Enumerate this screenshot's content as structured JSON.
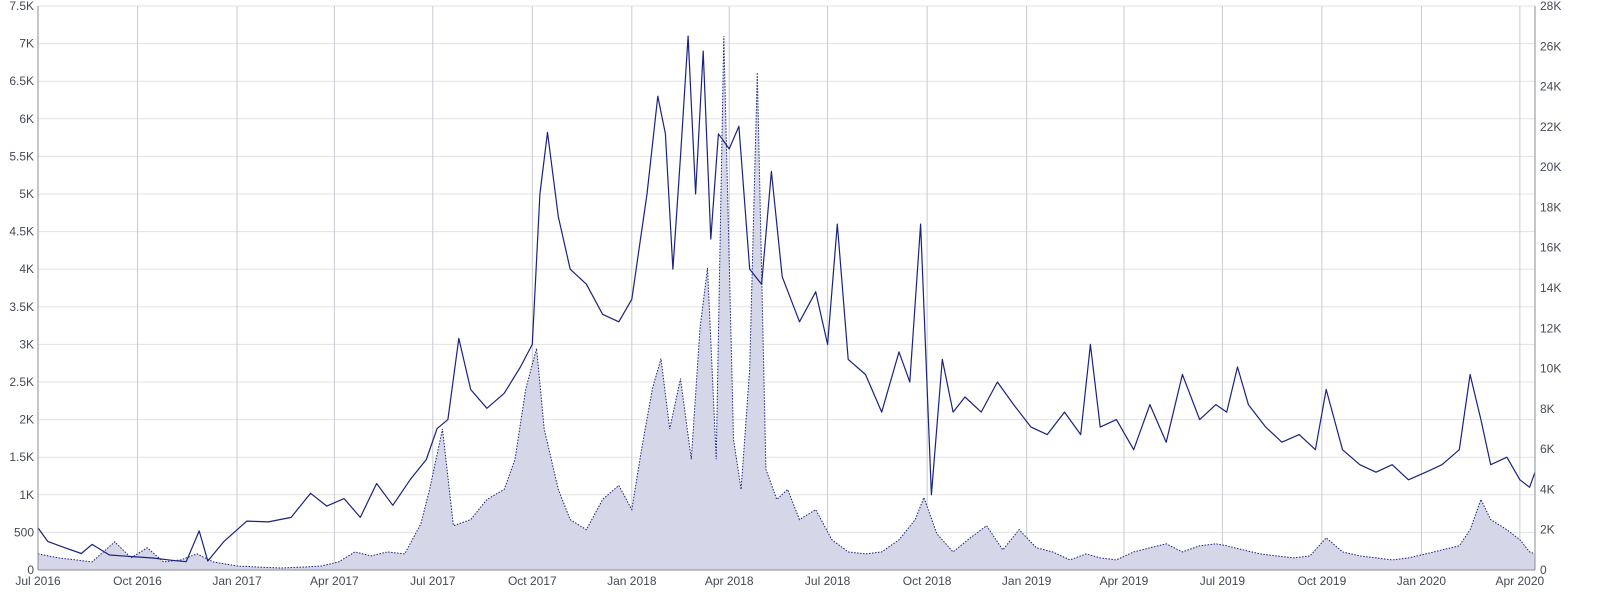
{
  "chart_data": {
    "type": "line",
    "title": "",
    "xlabel": "",
    "ylabel": "",
    "grid": true,
    "x_range": [
      "2016-07-01",
      "2020-04-15"
    ],
    "x_ticks": [
      {
        "date": "2016-07-01",
        "label": "Jul 2016"
      },
      {
        "date": "2016-10-01",
        "label": "Oct 2016"
      },
      {
        "date": "2017-01-01",
        "label": "Jan 2017"
      },
      {
        "date": "2017-04-01",
        "label": "Apr 2017"
      },
      {
        "date": "2017-07-01",
        "label": "Jul 2017"
      },
      {
        "date": "2017-10-01",
        "label": "Oct 2017"
      },
      {
        "date": "2018-01-01",
        "label": "Jan 2018"
      },
      {
        "date": "2018-04-01",
        "label": "Apr 2018"
      },
      {
        "date": "2018-07-01",
        "label": "Jul 2018"
      },
      {
        "date": "2018-10-01",
        "label": "Oct 2018"
      },
      {
        "date": "2019-01-01",
        "label": "Jan 2019"
      },
      {
        "date": "2019-04-01",
        "label": "Apr 2019"
      },
      {
        "date": "2019-07-01",
        "label": "Jul 2019"
      },
      {
        "date": "2019-10-01",
        "label": "Oct 2019"
      },
      {
        "date": "2020-01-01",
        "label": "Jan 2020"
      },
      {
        "date": "2020-04-01",
        "label": "Apr 2020"
      }
    ],
    "y_left": {
      "min": 0,
      "max": 7500,
      "ticks": [
        0,
        500,
        1000,
        1500,
        2000,
        2500,
        3000,
        3500,
        4000,
        4500,
        5000,
        5500,
        6000,
        6500,
        7000,
        7500
      ],
      "tick_labels": [
        "0",
        "500",
        "1K",
        "1.5K",
        "2K",
        "2.5K",
        "3K",
        "3.5K",
        "4K",
        "4.5K",
        "5K",
        "5.5K",
        "6K",
        "6.5K",
        "7K",
        "7.5K"
      ]
    },
    "y_right": {
      "min": 0,
      "max": 28000,
      "ticks": [
        0,
        2000,
        4000,
        6000,
        8000,
        10000,
        12000,
        14000,
        16000,
        18000,
        20000,
        22000,
        24000,
        26000,
        28000
      ],
      "tick_labels": [
        "0",
        "2K",
        "4K",
        "6K",
        "8K",
        "10K",
        "12K",
        "14K",
        "16K",
        "18K",
        "20K",
        "22K",
        "24K",
        "26K",
        "28K"
      ]
    },
    "series": [
      {
        "axis": "left",
        "style": "line",
        "color": "#1a237e",
        "points": [
          [
            "2016-07-01",
            560
          ],
          [
            "2016-07-10",
            380
          ],
          [
            "2016-07-25",
            300
          ],
          [
            "2016-08-10",
            220
          ],
          [
            "2016-08-20",
            340
          ],
          [
            "2016-09-05",
            200
          ],
          [
            "2016-09-25",
            180
          ],
          [
            "2016-10-15",
            160
          ],
          [
            "2016-11-01",
            130
          ],
          [
            "2016-11-15",
            110
          ],
          [
            "2016-11-27",
            520
          ],
          [
            "2016-12-05",
            120
          ],
          [
            "2016-12-20",
            380
          ],
          [
            "2017-01-10",
            650
          ],
          [
            "2017-01-30",
            640
          ],
          [
            "2017-02-20",
            700
          ],
          [
            "2017-03-10",
            1020
          ],
          [
            "2017-03-25",
            850
          ],
          [
            "2017-04-10",
            950
          ],
          [
            "2017-04-25",
            700
          ],
          [
            "2017-05-10",
            1150
          ],
          [
            "2017-05-25",
            860
          ],
          [
            "2017-06-10",
            1200
          ],
          [
            "2017-06-25",
            1470
          ],
          [
            "2017-07-05",
            1880
          ],
          [
            "2017-07-15",
            2000
          ],
          [
            "2017-07-25",
            3080
          ],
          [
            "2017-08-05",
            2400
          ],
          [
            "2017-08-20",
            2150
          ],
          [
            "2017-09-05",
            2350
          ],
          [
            "2017-09-20",
            2700
          ],
          [
            "2017-10-01",
            3000
          ],
          [
            "2017-10-08",
            5000
          ],
          [
            "2017-10-15",
            5820
          ],
          [
            "2017-10-25",
            4700
          ],
          [
            "2017-11-05",
            4000
          ],
          [
            "2017-11-20",
            3800
          ],
          [
            "2017-12-05",
            3400
          ],
          [
            "2017-12-20",
            3300
          ],
          [
            "2018-01-01",
            3600
          ],
          [
            "2018-01-15",
            5000
          ],
          [
            "2018-01-25",
            6300
          ],
          [
            "2018-02-01",
            5800
          ],
          [
            "2018-02-08",
            4000
          ],
          [
            "2018-02-15",
            5500
          ],
          [
            "2018-02-22",
            7100
          ],
          [
            "2018-03-01",
            5000
          ],
          [
            "2018-03-08",
            6900
          ],
          [
            "2018-03-15",
            4400
          ],
          [
            "2018-03-22",
            5800
          ],
          [
            "2018-04-01",
            5600
          ],
          [
            "2018-04-10",
            5900
          ],
          [
            "2018-04-20",
            4000
          ],
          [
            "2018-05-01",
            3800
          ],
          [
            "2018-05-10",
            5300
          ],
          [
            "2018-05-20",
            3900
          ],
          [
            "2018-06-05",
            3300
          ],
          [
            "2018-06-20",
            3700
          ],
          [
            "2018-07-01",
            3000
          ],
          [
            "2018-07-10",
            4600
          ],
          [
            "2018-07-20",
            2800
          ],
          [
            "2018-08-05",
            2600
          ],
          [
            "2018-08-20",
            2100
          ],
          [
            "2018-09-05",
            2900
          ],
          [
            "2018-09-15",
            2500
          ],
          [
            "2018-09-25",
            4600
          ],
          [
            "2018-10-05",
            1000
          ],
          [
            "2018-10-15",
            2800
          ],
          [
            "2018-10-25",
            2100
          ],
          [
            "2018-11-05",
            2300
          ],
          [
            "2018-11-20",
            2100
          ],
          [
            "2018-12-05",
            2500
          ],
          [
            "2018-12-20",
            2200
          ],
          [
            "2019-01-05",
            1900
          ],
          [
            "2019-01-20",
            1800
          ],
          [
            "2019-02-05",
            2100
          ],
          [
            "2019-02-20",
            1800
          ],
          [
            "2019-03-01",
            3000
          ],
          [
            "2019-03-10",
            1900
          ],
          [
            "2019-03-25",
            2000
          ],
          [
            "2019-04-10",
            1600
          ],
          [
            "2019-04-25",
            2200
          ],
          [
            "2019-05-10",
            1700
          ],
          [
            "2019-05-25",
            2600
          ],
          [
            "2019-06-10",
            2000
          ],
          [
            "2019-06-25",
            2200
          ],
          [
            "2019-07-05",
            2100
          ],
          [
            "2019-07-15",
            2700
          ],
          [
            "2019-07-25",
            2200
          ],
          [
            "2019-08-10",
            1900
          ],
          [
            "2019-08-25",
            1700
          ],
          [
            "2019-09-10",
            1800
          ],
          [
            "2019-09-25",
            1600
          ],
          [
            "2019-10-05",
            2400
          ],
          [
            "2019-10-20",
            1600
          ],
          [
            "2019-11-05",
            1400
          ],
          [
            "2019-11-20",
            1300
          ],
          [
            "2019-12-05",
            1400
          ],
          [
            "2019-12-20",
            1200
          ],
          [
            "2020-01-05",
            1300
          ],
          [
            "2020-01-20",
            1400
          ],
          [
            "2020-02-05",
            1600
          ],
          [
            "2020-02-15",
            2600
          ],
          [
            "2020-02-25",
            2000
          ],
          [
            "2020-03-05",
            1400
          ],
          [
            "2020-03-20",
            1500
          ],
          [
            "2020-04-01",
            1200
          ],
          [
            "2020-04-10",
            1100
          ],
          [
            "2020-04-15",
            1300
          ]
        ]
      },
      {
        "axis": "right",
        "style": "area-dotted",
        "color": "#1a237e",
        "fill": "#d5d6e8",
        "points": [
          [
            "2016-07-01",
            800
          ],
          [
            "2016-07-20",
            600
          ],
          [
            "2016-08-05",
            500
          ],
          [
            "2016-08-20",
            400
          ],
          [
            "2016-09-10",
            1400
          ],
          [
            "2016-09-25",
            600
          ],
          [
            "2016-10-10",
            1100
          ],
          [
            "2016-10-25",
            400
          ],
          [
            "2016-11-10",
            500
          ],
          [
            "2016-11-25",
            800
          ],
          [
            "2016-12-10",
            400
          ],
          [
            "2017-01-01",
            200
          ],
          [
            "2017-01-20",
            150
          ],
          [
            "2017-02-10",
            100
          ],
          [
            "2017-03-05",
            150
          ],
          [
            "2017-03-20",
            200
          ],
          [
            "2017-04-05",
            400
          ],
          [
            "2017-04-20",
            900
          ],
          [
            "2017-05-05",
            700
          ],
          [
            "2017-05-20",
            900
          ],
          [
            "2017-06-05",
            800
          ],
          [
            "2017-06-20",
            2300
          ],
          [
            "2017-06-28",
            4000
          ],
          [
            "2017-07-10",
            7000
          ],
          [
            "2017-07-20",
            2200
          ],
          [
            "2017-08-05",
            2500
          ],
          [
            "2017-08-20",
            3500
          ],
          [
            "2017-09-05",
            4000
          ],
          [
            "2017-09-15",
            5500
          ],
          [
            "2017-09-25",
            9000
          ],
          [
            "2017-10-05",
            11000
          ],
          [
            "2017-10-12",
            7000
          ],
          [
            "2017-10-25",
            4000
          ],
          [
            "2017-11-05",
            2500
          ],
          [
            "2017-11-20",
            2000
          ],
          [
            "2017-12-05",
            3500
          ],
          [
            "2017-12-20",
            4200
          ],
          [
            "2018-01-01",
            3000
          ],
          [
            "2018-01-10",
            6000
          ],
          [
            "2018-01-20",
            9000
          ],
          [
            "2018-01-28",
            10500
          ],
          [
            "2018-02-05",
            7000
          ],
          [
            "2018-02-15",
            9500
          ],
          [
            "2018-02-25",
            5500
          ],
          [
            "2018-03-05",
            12000
          ],
          [
            "2018-03-12",
            15000
          ],
          [
            "2018-03-20",
            5500
          ],
          [
            "2018-03-27",
            26500
          ],
          [
            "2018-04-05",
            6500
          ],
          [
            "2018-04-12",
            4000
          ],
          [
            "2018-04-20",
            10000
          ],
          [
            "2018-04-27",
            24700
          ],
          [
            "2018-05-05",
            5000
          ],
          [
            "2018-05-15",
            3500
          ],
          [
            "2018-05-25",
            4000
          ],
          [
            "2018-06-05",
            2500
          ],
          [
            "2018-06-20",
            3000
          ],
          [
            "2018-07-05",
            1500
          ],
          [
            "2018-07-20",
            900
          ],
          [
            "2018-08-05",
            800
          ],
          [
            "2018-08-20",
            900
          ],
          [
            "2018-09-05",
            1500
          ],
          [
            "2018-09-20",
            2500
          ],
          [
            "2018-09-28",
            3600
          ],
          [
            "2018-10-10",
            1800
          ],
          [
            "2018-10-25",
            900
          ],
          [
            "2018-11-10",
            1600
          ],
          [
            "2018-11-25",
            2200
          ],
          [
            "2018-12-10",
            1000
          ],
          [
            "2018-12-25",
            2000
          ],
          [
            "2019-01-10",
            1100
          ],
          [
            "2019-01-25",
            900
          ],
          [
            "2019-02-10",
            500
          ],
          [
            "2019-02-25",
            800
          ],
          [
            "2019-03-10",
            600
          ],
          [
            "2019-03-25",
            500
          ],
          [
            "2019-04-10",
            900
          ],
          [
            "2019-04-25",
            1100
          ],
          [
            "2019-05-10",
            1300
          ],
          [
            "2019-05-25",
            900
          ],
          [
            "2019-06-10",
            1200
          ],
          [
            "2019-06-25",
            1300
          ],
          [
            "2019-07-05",
            1200
          ],
          [
            "2019-07-20",
            1000
          ],
          [
            "2019-08-05",
            800
          ],
          [
            "2019-08-20",
            700
          ],
          [
            "2019-09-05",
            600
          ],
          [
            "2019-09-20",
            700
          ],
          [
            "2019-10-05",
            1600
          ],
          [
            "2019-10-20",
            900
          ],
          [
            "2019-11-05",
            700
          ],
          [
            "2019-11-20",
            600
          ],
          [
            "2019-12-05",
            500
          ],
          [
            "2019-12-20",
            600
          ],
          [
            "2020-01-05",
            800
          ],
          [
            "2020-01-20",
            1000
          ],
          [
            "2020-02-05",
            1200
          ],
          [
            "2020-02-15",
            2000
          ],
          [
            "2020-02-25",
            3500
          ],
          [
            "2020-03-05",
            2500
          ],
          [
            "2020-03-20",
            2000
          ],
          [
            "2020-04-01",
            1500
          ],
          [
            "2020-04-10",
            900
          ],
          [
            "2020-04-15",
            800
          ]
        ]
      }
    ]
  }
}
